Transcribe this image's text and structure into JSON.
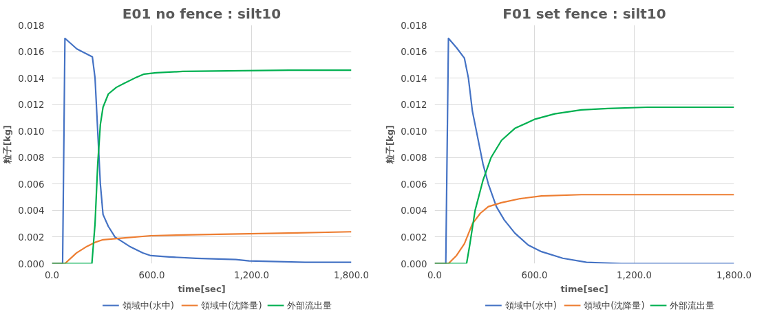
{
  "chart_data": [
    {
      "type": "line",
      "title": "E01 no fence : silt10",
      "xlabel": "time[sec]",
      "ylabel": "粒子[kg]",
      "xlim": [
        0,
        1800
      ],
      "ylim": [
        0,
        0.018
      ],
      "xticks": [
        {
          "value": 0,
          "label": "0.0"
        },
        {
          "value": 600,
          "label": "600.0"
        },
        {
          "value": 1200,
          "label": "1,200.0"
        },
        {
          "value": 1800,
          "label": "1,800.0"
        }
      ],
      "yticks": [
        {
          "value": 0,
          "label": "0.000"
        },
        {
          "value": 0.002,
          "label": "0.002"
        },
        {
          "value": 0.004,
          "label": "0.004"
        },
        {
          "value": 0.006,
          "label": "0.006"
        },
        {
          "value": 0.008,
          "label": "0.008"
        },
        {
          "value": 0.01,
          "label": "0.010"
        },
        {
          "value": 0.012,
          "label": "0.012"
        },
        {
          "value": 0.014,
          "label": "0.014"
        },
        {
          "value": 0.016,
          "label": "0.016"
        },
        {
          "value": 0.018,
          "label": "0.018"
        }
      ],
      "grid": true,
      "legend": "bottom",
      "marker": "none",
      "series": [
        {
          "name": "領域中(水中)",
          "color": "#4472c4",
          "x": [
            0,
            64,
            78,
            150,
            243,
            259,
            275,
            291,
            307,
            339,
            379,
            466,
            546,
            594,
            706,
            866,
            1105,
            1185,
            1521,
            1800
          ],
          "values": [
            0,
            0,
            0.017,
            0.0162,
            0.0156,
            0.014,
            0.01,
            0.006,
            0.0037,
            0.0028,
            0.002,
            0.0013,
            0.0008,
            0.0006,
            0.0005,
            0.0004,
            0.0003,
            0.0002,
            0.0001,
            0.0001
          ]
        },
        {
          "name": "領域中(沈降量)",
          "color": "#ed7d31",
          "x": [
            0,
            78,
            147,
            211,
            259,
            307,
            402,
            594,
            946,
            1425,
            1800
          ],
          "values": [
            0,
            0,
            0.0008,
            0.0013,
            0.0016,
            0.0018,
            0.0019,
            0.0021,
            0.0022,
            0.0023,
            0.0024
          ]
        },
        {
          "name": "外部流出量",
          "color": "#00b050",
          "x": [
            0,
            240,
            259,
            275,
            291,
            307,
            339,
            387,
            434,
            498,
            554,
            626,
            786,
            1425,
            1800
          ],
          "values": [
            0,
            0,
            0.003,
            0.0075,
            0.0105,
            0.0118,
            0.0128,
            0.0133,
            0.0136,
            0.014,
            0.0143,
            0.0144,
            0.0145,
            0.0146,
            0.0146
          ]
        }
      ]
    },
    {
      "type": "line",
      "title": "F01 set fence : silt10",
      "xlabel": "time[sec]",
      "ylabel": "粒子[kg]",
      "xlim": [
        0,
        1800
      ],
      "ylim": [
        0,
        0.018
      ],
      "xticks": [
        {
          "value": 0,
          "label": "0.0"
        },
        {
          "value": 600,
          "label": "600.0"
        },
        {
          "value": 1200,
          "label": "1,200.0"
        },
        {
          "value": 1800,
          "label": "1,800.0"
        }
      ],
      "yticks": [
        {
          "value": 0,
          "label": "0.000"
        },
        {
          "value": 0.002,
          "label": "0.002"
        },
        {
          "value": 0.004,
          "label": "0.004"
        },
        {
          "value": 0.006,
          "label": "0.006"
        },
        {
          "value": 0.008,
          "label": "0.008"
        },
        {
          "value": 0.01,
          "label": "0.010"
        },
        {
          "value": 0.012,
          "label": "0.012"
        },
        {
          "value": 0.014,
          "label": "0.014"
        },
        {
          "value": 0.016,
          "label": "0.016"
        },
        {
          "value": 0.018,
          "label": "0.018"
        }
      ],
      "grid": true,
      "legend": "bottom",
      "marker": "none",
      "series": [
        {
          "name": "領域中(水中)",
          "color": "#4472c4",
          "x": [
            0,
            67,
            83,
            131,
            179,
            203,
            227,
            259,
            291,
            323,
            371,
            418,
            482,
            562,
            642,
            770,
            913,
            1121,
            1800
          ],
          "values": [
            0,
            0,
            0.017,
            0.0163,
            0.0155,
            0.014,
            0.0115,
            0.0095,
            0.0075,
            0.006,
            0.0043,
            0.0033,
            0.0023,
            0.0014,
            0.0009,
            0.0004,
            0.0001,
            0,
            0
          ]
        },
        {
          "name": "領域中(沈降量)",
          "color": "#ed7d31",
          "x": [
            0,
            83,
            131,
            179,
            227,
            275,
            323,
            402,
            514,
            642,
            882,
            1800
          ],
          "values": [
            0,
            0,
            0.0006,
            0.0015,
            0.003,
            0.0038,
            0.0043,
            0.0046,
            0.0049,
            0.0051,
            0.0052,
            0.0052
          ]
        },
        {
          "name": "外部流出量",
          "color": "#00b050",
          "x": [
            0,
            192,
            211,
            243,
            291,
            339,
            402,
            482,
            604,
            722,
            882,
            1041,
            1281,
            1800
          ],
          "values": [
            0,
            0,
            0.0014,
            0.004,
            0.0063,
            0.008,
            0.0093,
            0.0102,
            0.0109,
            0.0113,
            0.0116,
            0.0117,
            0.0118,
            0.0118
          ]
        }
      ]
    }
  ]
}
